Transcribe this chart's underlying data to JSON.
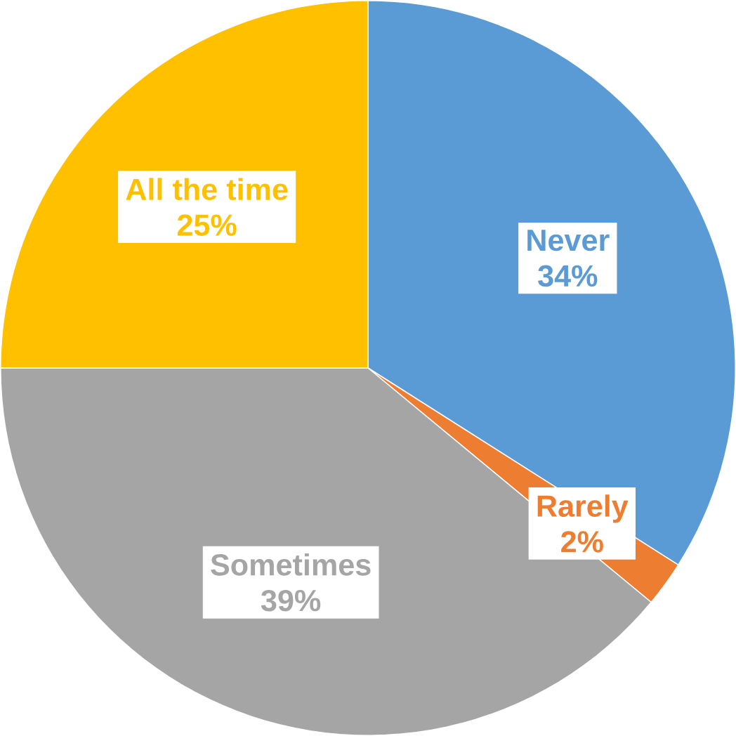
{
  "chart_data": {
    "type": "pie",
    "categories": [
      "Never",
      "Rarely",
      "Sometimes",
      "All the time"
    ],
    "values": [
      34,
      2,
      39,
      25
    ],
    "value_labels": [
      "34%",
      "2%",
      "39%",
      "25%"
    ],
    "colors": [
      "#5b9bd5",
      "#ed7d31",
      "#a5a5a5",
      "#ffc000"
    ]
  }
}
